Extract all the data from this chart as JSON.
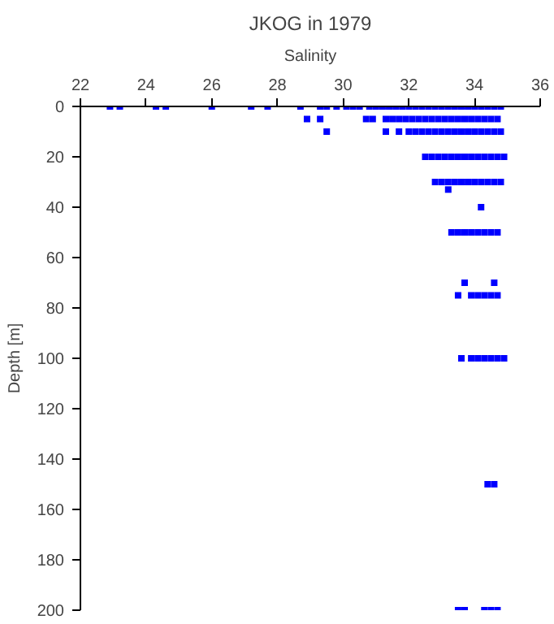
{
  "chart_data": {
    "type": "scatter",
    "title": "JKOG in 1979",
    "xlabel": "Salinity",
    "ylabel": "Depth [m]",
    "xlim": [
      22,
      36
    ],
    "xticks": [
      22,
      24,
      26,
      28,
      30,
      32,
      34,
      36
    ],
    "ylim": [
      200,
      0
    ],
    "yticks": [
      0,
      20,
      40,
      60,
      80,
      100,
      120,
      140,
      160,
      180,
      200
    ],
    "marker": "square",
    "grid": false,
    "series": [
      {
        "color": "#0000ff",
        "x": [
          22.9,
          23.2,
          24.3,
          24.6,
          26.0,
          27.2,
          27.7,
          28.7,
          29.3,
          29.5,
          29.8,
          30.1,
          30.3,
          30.5,
          30.8,
          31.0,
          31.2,
          31.4,
          31.6,
          31.8,
          32.0,
          32.2,
          32.4,
          32.6,
          32.8,
          33.0,
          33.2,
          33.4,
          33.6,
          33.8,
          34.0,
          34.2,
          34.4,
          34.6,
          34.8,
          28.9,
          29.3,
          30.7,
          30.9,
          31.3,
          31.5,
          31.7,
          31.9,
          32.1,
          32.3,
          32.5,
          32.7,
          32.9,
          33.1,
          33.3,
          33.5,
          33.7,
          33.9,
          34.1,
          34.3,
          34.5,
          34.7,
          29.5,
          31.3,
          31.7,
          32.0,
          32.2,
          32.4,
          32.6,
          32.8,
          33.0,
          33.2,
          33.4,
          33.6,
          33.8,
          34.0,
          34.2,
          34.4,
          34.6,
          34.8,
          32.5,
          32.7,
          32.9,
          33.1,
          33.3,
          33.5,
          33.7,
          33.9,
          34.1,
          34.3,
          34.5,
          34.7,
          34.9,
          32.8,
          33.0,
          33.2,
          33.4,
          33.6,
          33.8,
          34.0,
          34.2,
          34.4,
          34.6,
          34.8,
          33.2,
          34.2,
          33.3,
          33.5,
          33.7,
          33.9,
          34.1,
          34.3,
          34.5,
          34.7,
          33.7,
          34.6,
          33.5,
          33.9,
          34.1,
          34.3,
          34.5,
          34.7,
          33.6,
          33.9,
          34.1,
          34.3,
          34.5,
          34.7,
          34.9,
          34.4,
          34.6,
          33.5,
          33.7,
          34.3,
          34.5,
          34.7
        ],
        "values": [
          0,
          0,
          0,
          0,
          0,
          0,
          0,
          0,
          0,
          0,
          0,
          0,
          0,
          0,
          0,
          0,
          0,
          0,
          0,
          0,
          0,
          0,
          0,
          0,
          0,
          0,
          0,
          0,
          0,
          0,
          0,
          0,
          0,
          0,
          0,
          5,
          5,
          5,
          5,
          5,
          5,
          5,
          5,
          5,
          5,
          5,
          5,
          5,
          5,
          5,
          5,
          5,
          5,
          5,
          5,
          5,
          5,
          10,
          10,
          10,
          10,
          10,
          10,
          10,
          10,
          10,
          10,
          10,
          10,
          10,
          10,
          10,
          10,
          10,
          10,
          20,
          20,
          20,
          20,
          20,
          20,
          20,
          20,
          20,
          20,
          20,
          20,
          20,
          30,
          30,
          30,
          30,
          30,
          30,
          30,
          30,
          30,
          30,
          30,
          33,
          40,
          50,
          50,
          50,
          50,
          50,
          50,
          50,
          50,
          70,
          70,
          75,
          75,
          75,
          75,
          75,
          75,
          100,
          100,
          100,
          100,
          100,
          100,
          100,
          150,
          150,
          200,
          200,
          200,
          200,
          200
        ]
      }
    ]
  }
}
